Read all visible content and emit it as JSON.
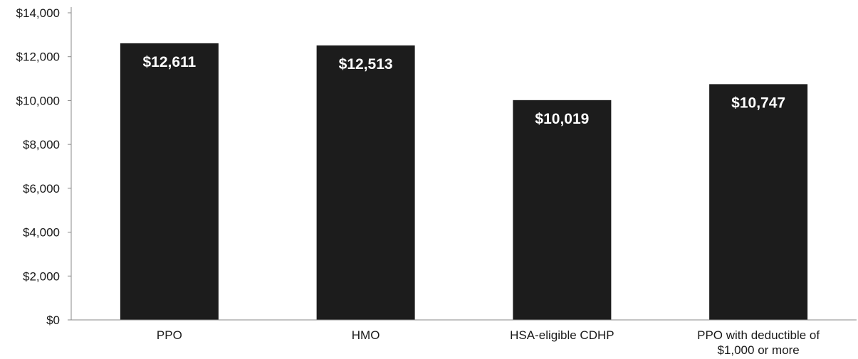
{
  "chart_data": {
    "type": "bar",
    "title": "",
    "xlabel": "",
    "ylabel": "",
    "categories": [
      [
        "PPO"
      ],
      [
        "HMO"
      ],
      [
        "HSA-eligible CDHP"
      ],
      [
        "PPO with deductible of",
        "$1,000 or more"
      ]
    ],
    "values": [
      12611,
      12513,
      10019,
      10747
    ],
    "data_labels": [
      "$12,611",
      "$12,513",
      "$10,019",
      "$10,747"
    ],
    "ylim": [
      0,
      14000
    ],
    "yticks": [
      0,
      2000,
      4000,
      6000,
      8000,
      10000,
      12000,
      14000
    ],
    "ytick_labels": [
      "$0",
      "$2,000",
      "$4,000",
      "$6,000",
      "$8,000",
      "$10,000",
      "$12,000",
      "$14,000"
    ],
    "grid": false,
    "legend": "none",
    "colors": {
      "bar": "#1c1c1c",
      "label": "#ffffff",
      "axis": "#8a8a8a"
    }
  }
}
